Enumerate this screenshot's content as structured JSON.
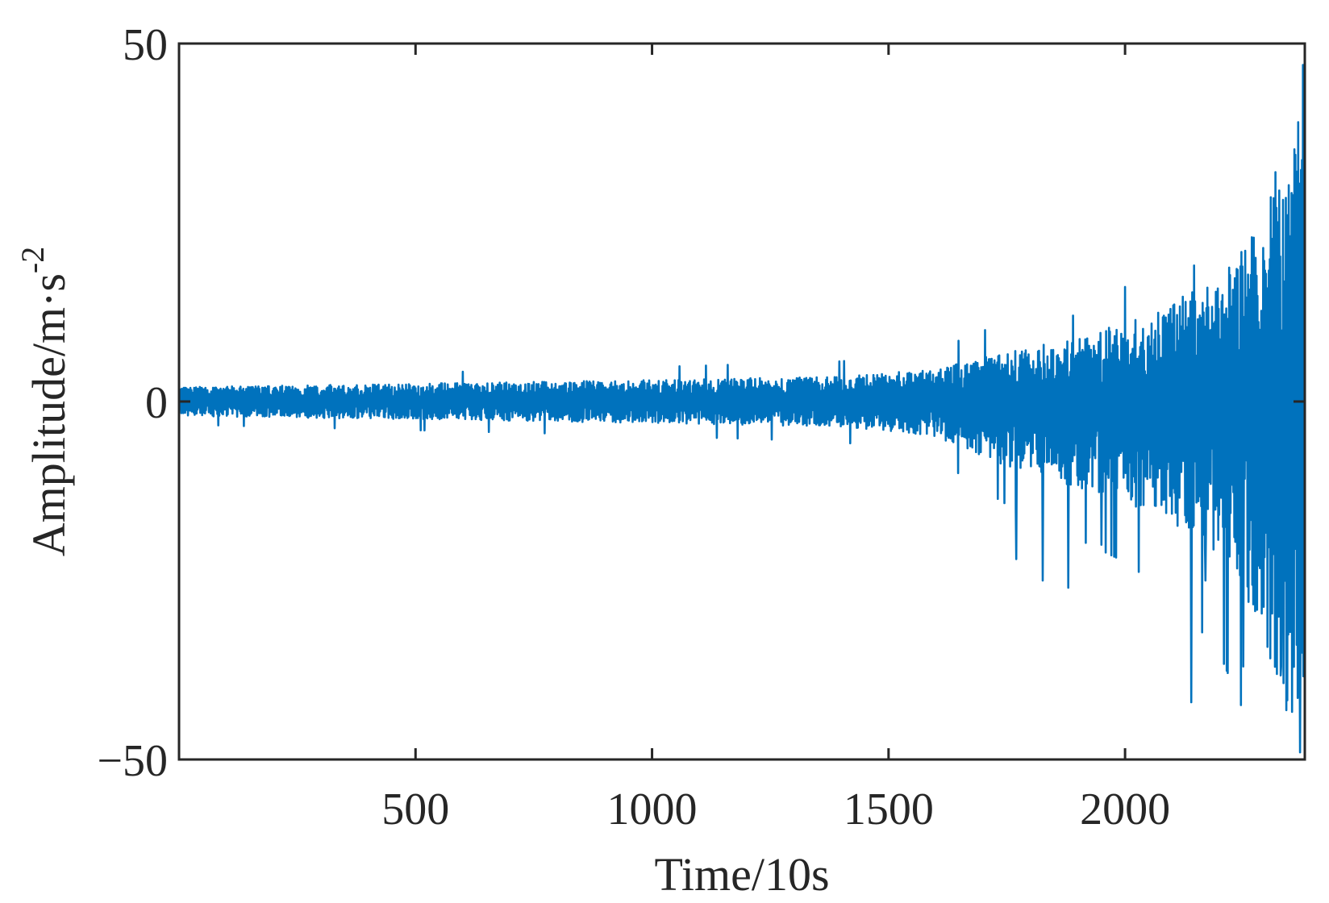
{
  "chart_data": {
    "type": "line",
    "title": "",
    "xlabel": "Time/10s",
    "ylabel_text": "Amplitude/m·s",
    "ylabel_exponent": "-2",
    "xlim": [
      0,
      2380
    ],
    "ylim": [
      -50,
      50
    ],
    "xticks": [
      500,
      1000,
      1500,
      2000
    ],
    "xtick_labels": [
      "500",
      "1000",
      "1500",
      "2000"
    ],
    "yticks": [
      -50,
      0,
      50
    ],
    "ytick_labels": [
      "−50",
      "0",
      "50"
    ],
    "grid": false,
    "legend": "none",
    "series": [
      {
        "color": "#0072BD",
        "envelope": {
          "x": [
            0,
            500,
            1000,
            1400,
            1600,
            1750,
            1900,
            2000,
            2100,
            2200,
            2280,
            2340,
            2380
          ],
          "upper": [
            2,
            2.5,
            3,
            3.5,
            4.5,
            7,
            9,
            11,
            14,
            18,
            24,
            38,
            48
          ],
          "lower": [
            -2,
            -2.5,
            -3,
            -3.5,
            -5,
            -9,
            -12,
            -14,
            -17,
            -22,
            -30,
            -44,
            -49
          ]
        },
        "spikes": [
          {
            "x": 1770,
            "y": -22
          },
          {
            "x": 1825,
            "y": -25
          },
          {
            "x": 1880,
            "y": -26
          },
          {
            "x": 1890,
            "y": 12
          },
          {
            "x": 1950,
            "y": -20
          },
          {
            "x": 2000,
            "y": 16
          },
          {
            "x": 2140,
            "y": -42
          },
          {
            "x": 2145,
            "y": 19
          },
          {
            "x": 2170,
            "y": -25
          },
          {
            "x": 2250,
            "y": -37
          },
          {
            "x": 2330,
            "y": -37
          },
          {
            "x": 2370,
            "y": -49
          },
          {
            "x": 2375,
            "y": 47
          }
        ]
      }
    ]
  }
}
